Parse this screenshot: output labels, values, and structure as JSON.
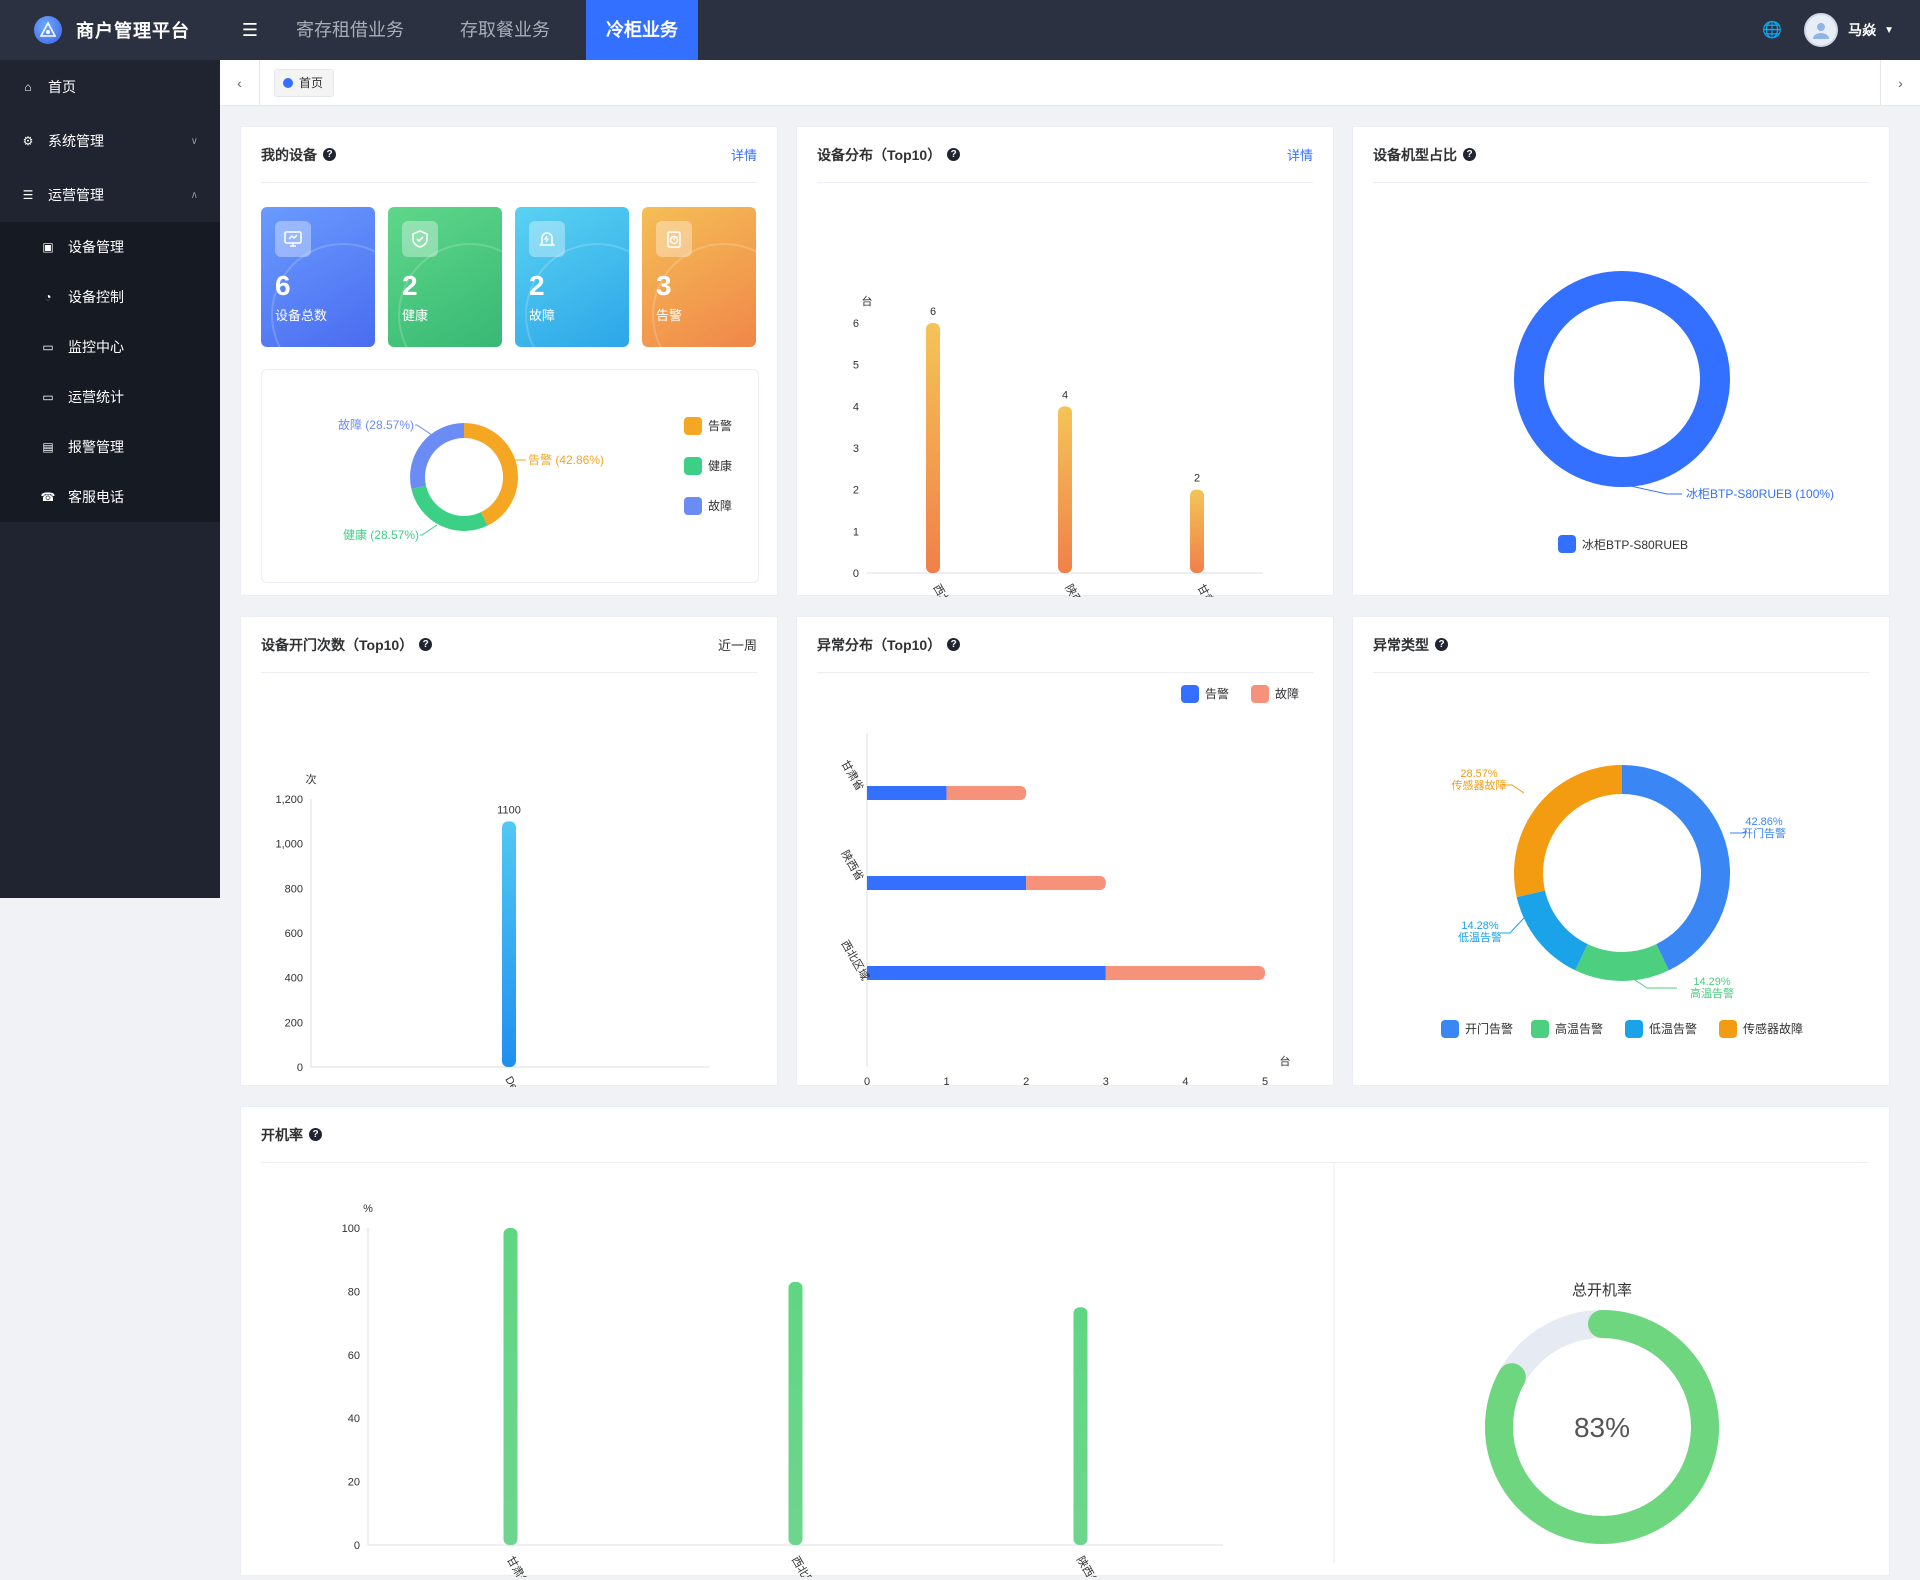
{
  "header": {
    "app_title": "商户管理平台",
    "tabs": [
      {
        "label": "寄存租借业务"
      },
      {
        "label": "存取餐业务"
      },
      {
        "label": "冷柜业务"
      }
    ],
    "active_tab": "冷柜业务",
    "user_name": "马焱"
  },
  "sidebar": {
    "items": [
      {
        "label": "首页",
        "icon": "home-icon"
      },
      {
        "label": "系统管理",
        "icon": "gear-icon"
      },
      {
        "label": "运营管理",
        "icon": "list-icon"
      }
    ],
    "sub_items": [
      {
        "label": "设备管理",
        "icon": "cube-icon"
      },
      {
        "label": "设备控制",
        "icon": "dashboard-icon"
      },
      {
        "label": "监控中心",
        "icon": "monitor-icon"
      },
      {
        "label": "运营统计",
        "icon": "monitor-icon"
      },
      {
        "label": "报警管理",
        "icon": "document-icon"
      },
      {
        "label": "客服电话",
        "icon": "phone-icon"
      }
    ]
  },
  "breadcrumb": {
    "tag": "首页"
  },
  "colors": {
    "primary": "#3370ff",
    "alarm": "#f5a623",
    "health": "#3ccf86",
    "fault": "#6c8cf5",
    "topbar": "#2b3140",
    "sidebar": "#1f2430"
  },
  "my_devices": {
    "title": "我的设备",
    "link": "详情",
    "stats": [
      {
        "value": "6",
        "label": "设备总数",
        "icon": "monitor-icon"
      },
      {
        "value": "2",
        "label": "健康",
        "icon": "shield-icon"
      },
      {
        "value": "2",
        "label": "故障",
        "icon": "bell-icon"
      },
      {
        "value": "3",
        "label": "告警",
        "icon": "timer-icon"
      }
    ],
    "chart_data": {
      "type": "pie",
      "slices": [
        {
          "name": "告警",
          "value": 42.86,
          "label": "告警 (42.86%)"
        },
        {
          "name": "健康",
          "value": 28.57,
          "label": "健康 (28.57%)"
        },
        {
          "name": "故障",
          "value": 28.57,
          "label": "故障 (28.57%)"
        }
      ],
      "legend": [
        "告警",
        "健康",
        "故障"
      ],
      "legend_position": "right"
    }
  },
  "device_distribution": {
    "title": "设备分布（Top10）",
    "link": "详情",
    "chart_data": {
      "type": "bar",
      "categories": [
        "西北区域",
        "陕西省",
        "甘肃省"
      ],
      "values": [
        6,
        4,
        2
      ],
      "ylabel": "台",
      "yticks": [
        0,
        1,
        2,
        3,
        4,
        5,
        6
      ],
      "ylim": [
        0,
        6
      ]
    }
  },
  "model_share": {
    "title": "设备机型占比",
    "chart_data": {
      "type": "pie",
      "slices": [
        {
          "name": "冰柜BTP-S80RUEB",
          "value": 100,
          "label": "冰柜BTP-S80RUEB (100%)"
        }
      ],
      "legend": [
        "冰柜BTP-S80RUEB"
      ],
      "legend_position": "bottom"
    }
  },
  "door_open": {
    "title": "设备开门次数（Top10）",
    "link": "近一周",
    "chart_data": {
      "type": "bar",
      "categories": [
        "Devicenffr"
      ],
      "values": [
        1100
      ],
      "ylabel": "次",
      "yticks": [
        "0",
        "200",
        "400",
        "600",
        "800",
        "1,000",
        "1,200"
      ],
      "ylim": [
        0,
        1200
      ]
    }
  },
  "anomaly_distribution": {
    "title": "异常分布（Top10）",
    "chart_data": {
      "type": "bar",
      "orientation": "horizontal",
      "stacked": true,
      "categories": [
        "甘肃省",
        "陕西省",
        "西北区域"
      ],
      "series": [
        {
          "name": "告警",
          "values": [
            1,
            2,
            3
          ]
        },
        {
          "name": "故障",
          "values": [
            1,
            1,
            2
          ]
        }
      ],
      "xlabel": "台",
      "xticks": [
        0,
        1,
        2,
        3,
        4,
        5
      ],
      "xlim": [
        0,
        5
      ],
      "legend_position": "top-right"
    }
  },
  "anomaly_types": {
    "title": "异常类型",
    "chart_data": {
      "type": "pie",
      "slices": [
        {
          "name": "开门告警",
          "value": 42.86,
          "pct": "42.86%"
        },
        {
          "name": "高温告警",
          "value": 14.29,
          "pct": "14.29%"
        },
        {
          "name": "低温告警",
          "value": 14.28,
          "pct": "14.28%"
        },
        {
          "name": "传感器故障",
          "value": 28.57,
          "pct": "28.57%"
        }
      ],
      "legend": [
        "开门告警",
        "高温告警",
        "低温告警",
        "传感器故障"
      ],
      "legend_position": "bottom"
    }
  },
  "boot_rate": {
    "title": "开机率",
    "chart_data": {
      "type": "bar",
      "categories": [
        "甘肃省",
        "西北区域",
        "陕西省"
      ],
      "values": [
        100,
        83,
        75
      ],
      "ylabel": "%",
      "yticks": [
        0,
        20,
        40,
        60,
        80,
        100
      ],
      "ylim": [
        0,
        100
      ]
    },
    "total_label": "总开机率",
    "total_value": 83,
    "total_text": "83%"
  }
}
